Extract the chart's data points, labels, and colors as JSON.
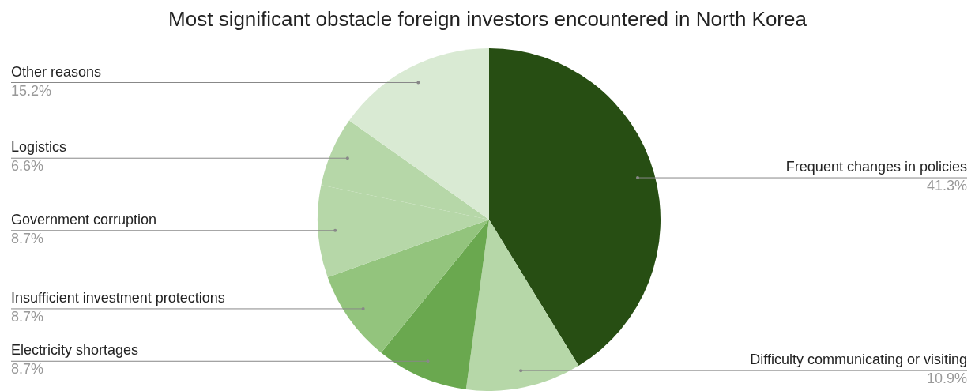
{
  "chart_data": {
    "type": "pie",
    "title": "Most significant obstacle foreign investors encountered in North Korea",
    "categories": [
      "Frequent changes in policies",
      "Difficulty communicating or visiting",
      "Electricity shortages",
      "Insufficient investment protections",
      "Government corruption",
      "Logistics",
      "Other reasons"
    ],
    "values": [
      41.3,
      10.9,
      8.7,
      8.7,
      8.7,
      6.6,
      15.2
    ],
    "value_labels": [
      "41.3%",
      "10.9%",
      "8.7%",
      "8.7%",
      "8.7%",
      "6.6%",
      "15.2%"
    ],
    "colors": [
      "#274e13",
      "#b6d7a8",
      "#6aa84f",
      "#93c47d",
      "#b6d7a8",
      "#b6d7a8",
      "#d9ead3"
    ]
  }
}
